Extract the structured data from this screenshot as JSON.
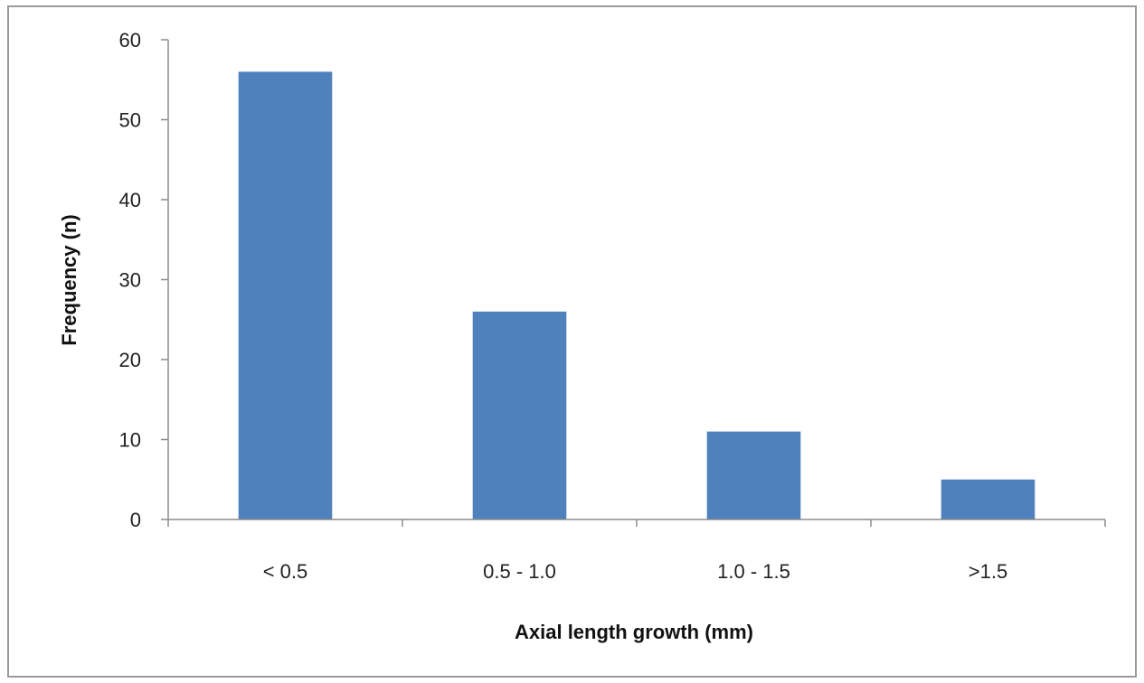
{
  "chart_data": {
    "type": "bar",
    "title": "",
    "xlabel": "Axial length growth (mm)",
    "ylabel": "Frequency (n)",
    "categories": [
      "< 0.5",
      "0.5 - 1.0",
      "1.0 - 1.5",
      ">1.5"
    ],
    "values": [
      56,
      26,
      11,
      5
    ],
    "ylim": [
      0,
      60
    ],
    "yticks": [
      0,
      10,
      20,
      30,
      40,
      50,
      60
    ],
    "grid": false,
    "legend": "none",
    "bar_color": "#4f81bd"
  }
}
